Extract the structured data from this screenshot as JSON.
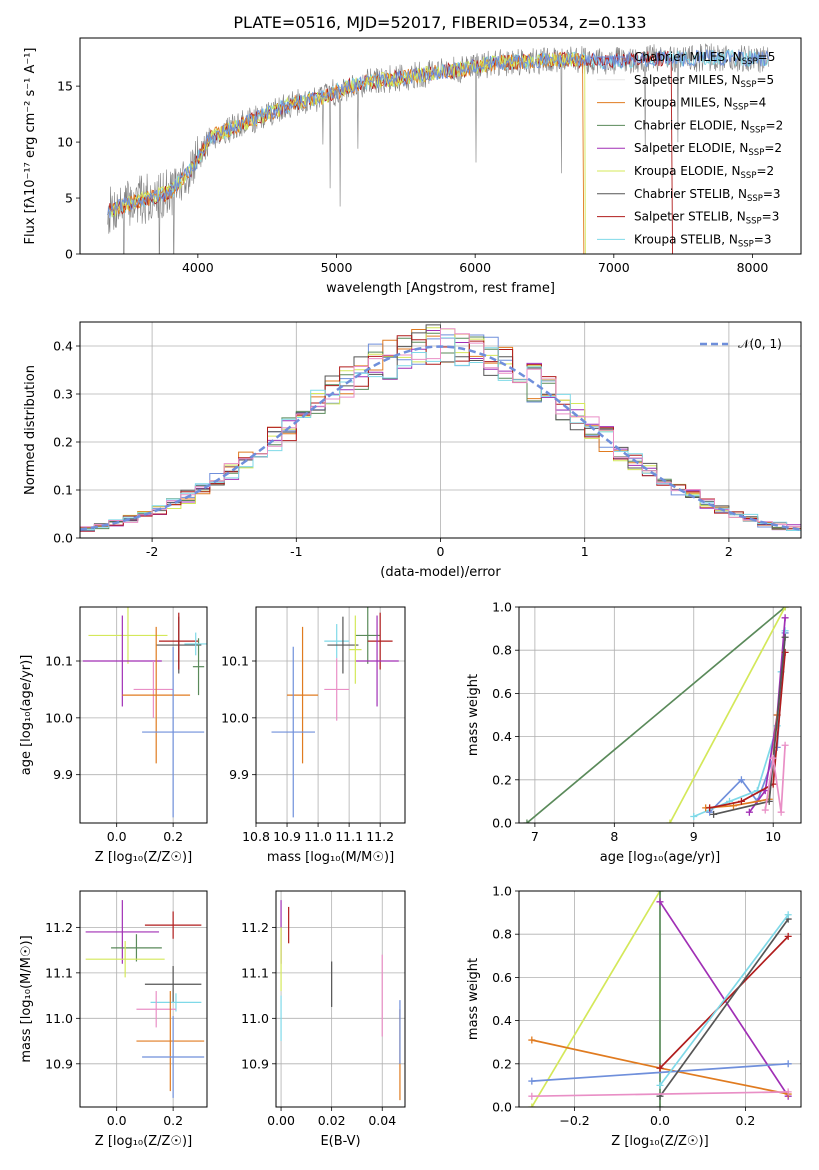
{
  "title": "PLATE=0516, MJD=52017, FIBERID=0534, z=0.133",
  "colors": {
    "chabrier_miles": "#6f8fdb",
    "salpeter_miles": "#e8e8e8",
    "kroupa_miles": "#e07b20",
    "chabrier_elodie": "#5a8a5a",
    "salpeter_elodie": "#a02fb5",
    "kroupa_elodie": "#d4e85a",
    "chabrier_stelib": "#555555",
    "salpeter_stelib": "#b01c1c",
    "kroupa_stelib": "#7fd9e8",
    "pink": "#e98fc6",
    "gauss": "#6f8fdb",
    "grid": "#b0b0b0"
  },
  "legend_spectrum": [
    {
      "key": "chabrier_miles",
      "label": "Chabrier MILES, N",
      "sub": "SSP",
      "tail": "=5"
    },
    {
      "key": "salpeter_miles",
      "label": "Salpeter MILES, N",
      "sub": "SSP",
      "tail": "=5"
    },
    {
      "key": "kroupa_miles",
      "label": "Kroupa MILES, N",
      "sub": "SSP",
      "tail": "=4"
    },
    {
      "key": "chabrier_elodie",
      "label": "Chabrier ELODIE, N",
      "sub": "SSP",
      "tail": "=2"
    },
    {
      "key": "salpeter_elodie",
      "label": "Salpeter ELODIE, N",
      "sub": "SSP",
      "tail": "=2"
    },
    {
      "key": "kroupa_elodie",
      "label": "Kroupa ELODIE, N",
      "sub": "SSP",
      "tail": "=2"
    },
    {
      "key": "chabrier_stelib",
      "label": "Chabrier STELIB, N",
      "sub": "SSP",
      "tail": "=3"
    },
    {
      "key": "salpeter_stelib",
      "label": "Salpeter STELIB, N",
      "sub": "SSP",
      "tail": "=3"
    },
    {
      "key": "kroupa_stelib",
      "label": "Kroupa STELIB, N",
      "sub": "SSP",
      "tail": "=3"
    }
  ],
  "legend_hist": "𝒩(0, 1)",
  "chart_data": [
    {
      "type": "line",
      "name": "spectrum",
      "title": "PLATE=0516, MJD=52017, FIBERID=0534, z=0.133",
      "xlabel": "wavelength [Angstrom, rest frame]",
      "ylabel": "Flux [fλ10⁻¹⁷ erg cm⁻² s⁻¹ A⁻¹]",
      "xlim": [
        3150,
        8350
      ],
      "ylim": [
        0,
        19.3
      ],
      "xticks": [
        4000,
        5000,
        6000,
        7000,
        8000
      ],
      "yticks": [
        0,
        5,
        10,
        15
      ],
      "spectrum": {
        "x": [
          3350,
          3500,
          3650,
          3800,
          3950,
          4100,
          4300,
          4500,
          4700,
          4900,
          5100,
          5300,
          5500,
          5700,
          5900,
          6100,
          6300,
          6500,
          6700,
          6900,
          7100,
          7300,
          7500,
          7700,
          7900,
          8100
        ],
        "y": [
          3.8,
          4.5,
          5.0,
          5.5,
          7.5,
          10.5,
          11.5,
          12.5,
          13.5,
          14.0,
          15.0,
          15.5,
          15.8,
          16.2,
          16.5,
          17.0,
          17.2,
          17.3,
          17.4,
          17.2,
          17.3,
          17.5,
          17.4,
          17.6,
          17.5,
          17.4
        ]
      },
      "model_cutoffs": {
        "kroupa_elodie": 6790,
        "salpeter_stelib": 7420,
        "kroupa_miles": 6780
      }
    },
    {
      "type": "bar",
      "name": "residual-histogram",
      "xlabel": "(data-model)/error",
      "ylabel": "Normed distribution",
      "xlim": [
        -2.5,
        2.5
      ],
      "ylim": [
        0,
        0.45
      ],
      "xticks": [
        -2,
        -1,
        0,
        1,
        2
      ],
      "yticks": [
        0.0,
        0.1,
        0.2,
        0.3,
        0.4
      ],
      "grid": true,
      "legend_position": "top-right",
      "bin_width": 0.1
    },
    {
      "type": "scatter",
      "name": "age-vs-Z",
      "xlabel": "Z [log₁₀(Z/Z☉)]",
      "ylabel": "age  [log₁₀(age/yr)]",
      "xlim": [
        -0.13,
        0.32
      ],
      "ylim": [
        9.815,
        10.195
      ],
      "xticks": [
        0.0,
        0.2
      ],
      "yticks": [
        9.9,
        10.0,
        10.1
      ],
      "points": [
        {
          "key": "kroupa_elodie",
          "x": 0.04,
          "y": 10.145,
          "xerr": 0.14,
          "yerr": 0.05
        },
        {
          "key": "salpeter_elodie",
          "x": 0.02,
          "y": 10.1,
          "xerr": 0.14,
          "yerr": 0.08
        },
        {
          "key": "chabrier_stelib",
          "x": 0.22,
          "y": 10.128,
          "xerr": 0.08,
          "yerr": 0.05
        },
        {
          "key": "salpeter_stelib",
          "x": 0.22,
          "y": 10.135,
          "xerr": 0.07,
          "yerr": 0.05
        },
        {
          "key": "chabrier_elodie",
          "x": 0.29,
          "y": 10.09,
          "xerr": 0.02,
          "yerr": 0.05
        },
        {
          "key": "kroupa_stelib",
          "x": 0.28,
          "y": 10.13,
          "xerr": 0.04,
          "yerr": 0.02
        },
        {
          "key": "pink",
          "x": 0.13,
          "y": 10.05,
          "xerr": 0.07,
          "yerr": 0.05
        },
        {
          "key": "kroupa_miles",
          "x": 0.14,
          "y": 10.04,
          "xerr": 0.12,
          "yerr": 0.12
        },
        {
          "key": "chabrier_miles",
          "x": 0.2,
          "y": 9.975,
          "xerr": 0.11,
          "yerr": 0.15
        }
      ]
    },
    {
      "type": "scatter",
      "name": "age-vs-mass",
      "xlabel": "mass [log₁₀(M/M☉)]",
      "xlim": [
        10.8,
        11.28
      ],
      "ylim": [
        9.815,
        10.195
      ],
      "xticks": [
        10.8,
        10.9,
        11.0,
        11.1,
        11.2
      ],
      "yticks": [
        9.9,
        10.0,
        10.1
      ],
      "points": [
        {
          "key": "kroupa_stelib",
          "x": 11.06,
          "y": 10.135,
          "xerr": 0.04,
          "yerr": 0.03
        },
        {
          "key": "chabrier_stelib",
          "x": 11.08,
          "y": 10.128,
          "xerr": 0.05,
          "yerr": 0.05
        },
        {
          "key": "chabrier_elodie",
          "x": 11.16,
          "y": 10.145,
          "xerr": 0.04,
          "yerr": 0.05
        },
        {
          "key": "salpeter_stelib",
          "x": 11.2,
          "y": 10.135,
          "xerr": 0.04,
          "yerr": 0.05
        },
        {
          "key": "salpeter_elodie",
          "x": 11.19,
          "y": 10.1,
          "xerr": 0.07,
          "yerr": 0.08
        },
        {
          "key": "kroupa_elodie",
          "x": 11.12,
          "y": 10.12,
          "xerr": 0.02,
          "yerr": 0.06
        },
        {
          "key": "pink",
          "x": 11.06,
          "y": 10.05,
          "xerr": 0.04,
          "yerr": 0.055
        },
        {
          "key": "kroupa_miles",
          "x": 10.95,
          "y": 10.04,
          "xerr": 0.05,
          "yerr": 0.12
        },
        {
          "key": "chabrier_miles",
          "x": 10.92,
          "y": 9.975,
          "xerr": 0.07,
          "yerr": 0.15
        }
      ]
    },
    {
      "type": "line",
      "name": "mass-weight-vs-age",
      "xlabel": "age  [log₁₀(age/yr)]",
      "ylabel": "mass weight",
      "xlim": [
        6.8,
        10.35
      ],
      "ylim": [
        0,
        1
      ],
      "xticks": [
        7,
        8,
        9,
        10
      ],
      "yticks": [
        0.0,
        0.2,
        0.4,
        0.6,
        0.8,
        1.0
      ],
      "series": [
        {
          "key": "chabrier_elodie",
          "x": [
            6.9,
            10.15
          ],
          "y": [
            0.0,
            1.0
          ]
        },
        {
          "key": "kroupa_elodie",
          "x": [
            8.7,
            10.15
          ],
          "y": [
            0.0,
            1.0
          ]
        },
        {
          "key": "chabrier_miles",
          "x": [
            9.2,
            9.6,
            9.8,
            10.05,
            10.15
          ],
          "y": [
            0.05,
            0.2,
            0.1,
            0.35,
            0.88
          ]
        },
        {
          "key": "kroupa_stelib",
          "x": [
            9.0,
            9.45,
            9.8,
            10.05,
            10.1,
            10.15
          ],
          "y": [
            0.03,
            0.1,
            0.15,
            0.45,
            0.7,
            0.89
          ]
        },
        {
          "key": "salpeter_elodie",
          "x": [
            9.7,
            9.9,
            10.05,
            10.15
          ],
          "y": [
            0.05,
            0.15,
            0.5,
            0.95
          ]
        },
        {
          "key": "kroupa_miles",
          "x": [
            9.15,
            9.5,
            9.95,
            10.05
          ],
          "y": [
            0.07,
            0.08,
            0.11,
            0.5
          ]
        },
        {
          "key": "salpeter_stelib",
          "x": [
            9.2,
            9.6,
            10.0,
            10.15
          ],
          "y": [
            0.07,
            0.1,
            0.18,
            0.79
          ]
        },
        {
          "key": "chabrier_stelib",
          "x": [
            9.25,
            9.95,
            10.15
          ],
          "y": [
            0.04,
            0.1,
            0.86
          ]
        },
        {
          "key": "pink",
          "x": [
            9.9,
            10.0,
            10.1,
            10.15
          ],
          "y": [
            0.06,
            0.3,
            0.05,
            0.36
          ]
        }
      ]
    },
    {
      "type": "scatter",
      "name": "mass-vs-Z",
      "xlabel": "Z [log₁₀(Z/Z☉)]",
      "ylabel": "mass [log₁₀(M/M☉)]",
      "xlim": [
        -0.13,
        0.32
      ],
      "ylim": [
        10.805,
        11.28
      ],
      "xticks": [
        0.0,
        0.2
      ],
      "yticks": [
        10.9,
        11.0,
        11.1,
        11.2
      ],
      "points": [
        {
          "key": "salpeter_stelib",
          "x": 0.2,
          "y": 11.205,
          "xerr": 0.1,
          "yerr": 0.03
        },
        {
          "key": "salpeter_elodie",
          "x": 0.02,
          "y": 11.19,
          "xerr": 0.13,
          "yerr": 0.07
        },
        {
          "key": "chabrier_elodie",
          "x": 0.07,
          "y": 11.155,
          "xerr": 0.09,
          "yerr": 0.03
        },
        {
          "key": "kroupa_elodie",
          "x": 0.03,
          "y": 11.13,
          "xerr": 0.14,
          "yerr": 0.04
        },
        {
          "key": "chabrier_stelib",
          "x": 0.2,
          "y": 11.075,
          "xerr": 0.1,
          "yerr": 0.04
        },
        {
          "key": "kroupa_stelib",
          "x": 0.21,
          "y": 11.035,
          "xerr": 0.09,
          "yerr": 0.02
        },
        {
          "key": "pink",
          "x": 0.14,
          "y": 11.02,
          "xerr": 0.07,
          "yerr": 0.04
        },
        {
          "key": "kroupa_miles",
          "x": 0.19,
          "y": 10.95,
          "xerr": 0.12,
          "yerr": 0.11
        },
        {
          "key": "chabrier_miles",
          "x": 0.2,
          "y": 10.915,
          "xerr": 0.11,
          "yerr": 0.09
        }
      ]
    },
    {
      "type": "scatter",
      "name": "mass-vs-EBV",
      "xlabel": "E(B-V)",
      "xlim": [
        -0.002,
        0.049
      ],
      "ylim": [
        10.805,
        11.28
      ],
      "xticks": [
        0.0,
        0.02,
        0.04
      ],
      "yticks": [
        10.9,
        11.0,
        11.1,
        11.2
      ],
      "points": [
        {
          "key": "salpeter_elodie",
          "x": 0.0,
          "y": 11.19,
          "xerr": 0,
          "yerr": 0.07
        },
        {
          "key": "salpeter_stelib",
          "x": 0.003,
          "y": 11.205,
          "xerr": 0,
          "yerr": 0.04
        },
        {
          "key": "kroupa_elodie",
          "x": 0.0,
          "y": 11.13,
          "xerr": 0,
          "yerr": 0.07
        },
        {
          "key": "kroupa_stelib",
          "x": 0.0,
          "y": 11.0,
          "xerr": 0,
          "yerr": 0.05
        },
        {
          "key": "chabrier_stelib",
          "x": 0.02,
          "y": 11.075,
          "xerr": 0,
          "yerr": 0.05
        },
        {
          "key": "pink",
          "x": 0.04,
          "y": 11.05,
          "xerr": 0,
          "yerr": 0.09
        },
        {
          "key": "kroupa_miles",
          "x": 0.047,
          "y": 10.92,
          "xerr": 0,
          "yerr": 0.1
        },
        {
          "key": "chabrier_miles",
          "x": 0.047,
          "y": 10.97,
          "xerr": 0,
          "yerr": 0.07
        }
      ]
    },
    {
      "type": "line",
      "name": "mass-weight-vs-Z",
      "xlabel": "Z [log₁₀(Z/Z☉)]",
      "ylabel": "mass weight",
      "xlim": [
        -0.33,
        0.33
      ],
      "ylim": [
        0,
        1
      ],
      "xticks": [
        -0.2,
        0.0,
        0.2
      ],
      "yticks": [
        0.0,
        0.2,
        0.4,
        0.6,
        0.8,
        1.0
      ],
      "series": [
        {
          "key": "kroupa_elodie",
          "x": [
            -0.3,
            0.0
          ],
          "y": [
            0.0,
            1.0
          ]
        },
        {
          "key": "chabrier_elodie",
          "x": [
            0.0,
            0.0
          ],
          "y": [
            0.0,
            1.0
          ]
        },
        {
          "key": "salpeter_elodie",
          "x": [
            0.0,
            0.3
          ],
          "y": [
            0.95,
            0.05
          ]
        },
        {
          "key": "kroupa_miles",
          "x": [
            -0.3,
            0.0,
            0.3
          ],
          "y": [
            0.31,
            0.18,
            0.06
          ]
        },
        {
          "key": "chabrier_miles",
          "x": [
            -0.3,
            0.3
          ],
          "y": [
            0.12,
            0.2
          ]
        },
        {
          "key": "salpeter_stelib",
          "x": [
            0.0,
            0.3
          ],
          "y": [
            0.18,
            0.79
          ]
        },
        {
          "key": "chabrier_stelib",
          "x": [
            0.0,
            0.3
          ],
          "y": [
            0.05,
            0.87
          ]
        },
        {
          "key": "kroupa_stelib",
          "x": [
            0.0,
            0.3
          ],
          "y": [
            0.1,
            0.89
          ]
        },
        {
          "key": "pink",
          "x": [
            -0.3,
            0.3
          ],
          "y": [
            0.05,
            0.07
          ]
        }
      ]
    }
  ]
}
